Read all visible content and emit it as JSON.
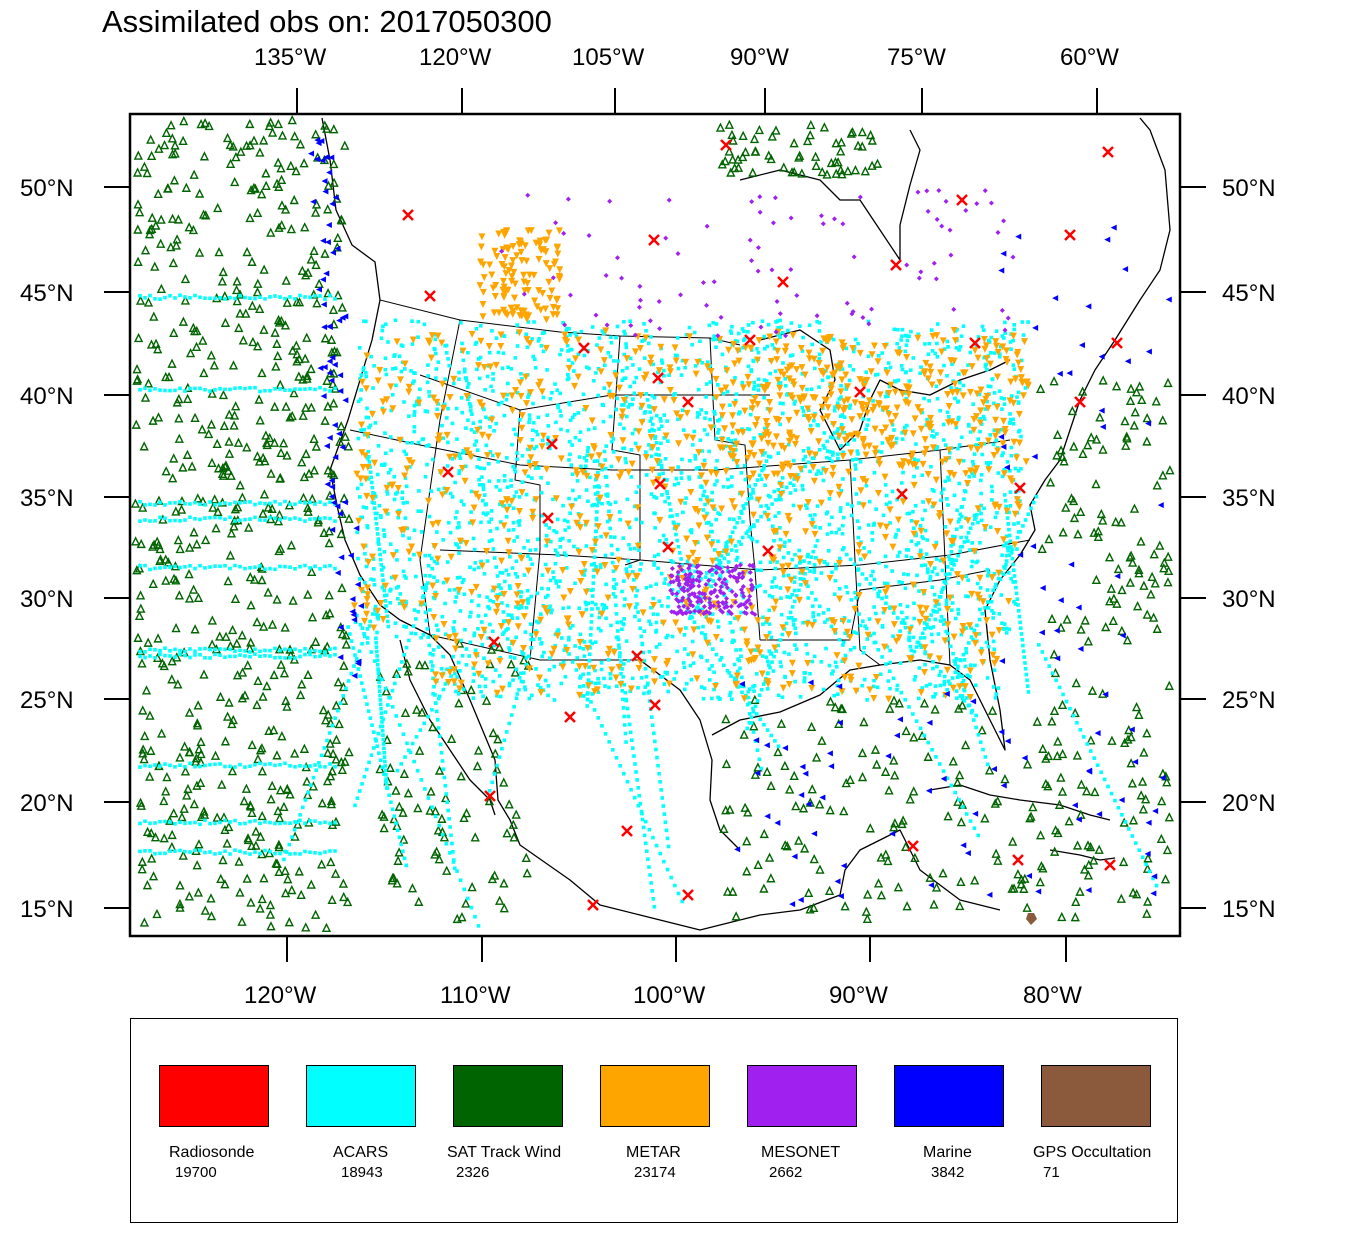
{
  "title": "Assimilated obs on: 2017050300",
  "top_lon_labels": [
    "135°W",
    "120°W",
    "105°W",
    "90°W",
    "75°W",
    "60°W"
  ],
  "bottom_lon_labels": [
    "120°W",
    "110°W",
    "100°W",
    "90°W",
    "80°W"
  ],
  "left_lat_labels": [
    "50°N",
    "45°N",
    "40°N",
    "35°N",
    "30°N",
    "25°N",
    "20°N",
    "15°N"
  ],
  "right_lat_labels": [
    "50°N",
    "45°N",
    "40°N",
    "35°N",
    "30°N",
    "25°N",
    "20°N",
    "15°N"
  ],
  "legend": [
    {
      "name": "Radiosonde",
      "count": "19700",
      "color": "#ff0000",
      "marker": "x-cross"
    },
    {
      "name": "ACARS",
      "count": "18943",
      "color": "#00ffff",
      "marker": "small-square"
    },
    {
      "name": "SAT Track Wind",
      "count": "2326",
      "color": "#006400",
      "marker": "hollow-triangle-up"
    },
    {
      "name": "METAR",
      "count": "23174",
      "color": "#ffa500",
      "marker": "triangle-down"
    },
    {
      "name": "MESONET",
      "count": "2662",
      "color": "#a020f0",
      "marker": "small-diamond"
    },
    {
      "name": "Marine",
      "count": "3842",
      "color": "#0000ff",
      "marker": "triangle-left"
    },
    {
      "name": "GPS Occultation",
      "count": "71",
      "color": "#8b5a3c",
      "marker": "pentagon"
    }
  ]
}
